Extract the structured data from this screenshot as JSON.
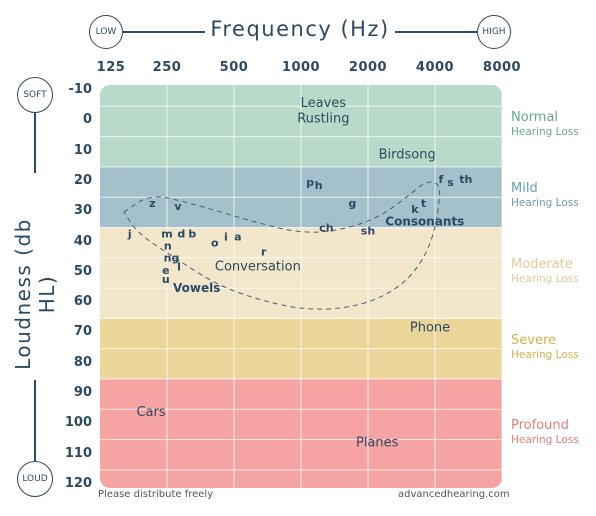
{
  "chart_data": {
    "type": "audiogram",
    "title": "Frequency (Hz)",
    "ylabel": "Loudness (db HL)",
    "x_scale": "log2",
    "x_ticks": [
      125,
      250,
      500,
      1000,
      2000,
      4000,
      8000
    ],
    "x_tick_labels": [
      "125",
      "250",
      "500",
      "1000",
      "2000",
      "4000",
      "8000"
    ],
    "x_range": [
      125,
      8000
    ],
    "y_ticks": [
      -10,
      0,
      10,
      20,
      30,
      40,
      50,
      60,
      70,
      80,
      90,
      100,
      110,
      120
    ],
    "y_range": [
      -10,
      120
    ],
    "y_inverted": true,
    "x_end_labels": {
      "low": "LOW",
      "high": "HIGH"
    },
    "y_end_labels": {
      "top": "SOFT",
      "bottom": "LOUD"
    },
    "bands": [
      {
        "name": "Normal",
        "sub": "Hearing Loss",
        "from": -10,
        "to": 20,
        "color": "#b9dac8",
        "label_color": "#6aa98b"
      },
      {
        "name": "Mild",
        "sub": "Hearing Loss",
        "from": 20,
        "to": 40,
        "color": "#a4c0cb",
        "label_color": "#6a9db0"
      },
      {
        "name": "Moderate",
        "sub": "Hearing Loss",
        "from": 40,
        "to": 70,
        "color": "#f2e6cb",
        "label_color": "#e2c99a"
      },
      {
        "name": "Severe",
        "sub": "Hearing Loss",
        "from": 70,
        "to": 90,
        "color": "#ead699",
        "label_color": "#d6b14f"
      },
      {
        "name": "Profound",
        "sub": "Hearing Loss",
        "from": 90,
        "to": 120,
        "color": "#f5a3a3",
        "label_color": "#e77b7b"
      }
    ],
    "annotations": [
      {
        "text": "Leaves",
        "freq": 1260,
        "db": -6,
        "weight": "normal"
      },
      {
        "text": "Rustling",
        "freq": 1260,
        "db": -1,
        "weight": "normal"
      },
      {
        "text": "Birdsong",
        "freq": 3000,
        "db": 11,
        "weight": "normal"
      },
      {
        "text": "Conversation",
        "freq": 640,
        "db": 48,
        "weight": "normal"
      },
      {
        "text": "Phone",
        "freq": 3800,
        "db": 68,
        "weight": "normal"
      },
      {
        "text": "Cars",
        "freq": 212,
        "db": 96,
        "weight": "normal"
      },
      {
        "text": "Planes",
        "freq": 2200,
        "db": 106,
        "weight": "normal"
      },
      {
        "text": "Consonants",
        "freq": 3600,
        "db": 33,
        "weight": "bold"
      },
      {
        "text": "Vowels",
        "freq": 340,
        "db": 55,
        "weight": "bold"
      }
    ],
    "speech_sounds": [
      {
        "text": "z",
        "freq": 215,
        "db": 27
      },
      {
        "text": "v",
        "freq": 280,
        "db": 28
      },
      {
        "text": "j",
        "freq": 170,
        "db": 37
      },
      {
        "text": "m",
        "freq": 250,
        "db": 37
      },
      {
        "text": "d",
        "freq": 290,
        "db": 37
      },
      {
        "text": "b",
        "freq": 325,
        "db": 37
      },
      {
        "text": "n",
        "freq": 252,
        "db": 41
      },
      {
        "text": "ng",
        "freq": 262,
        "db": 45
      },
      {
        "text": "e",
        "freq": 247,
        "db": 49
      },
      {
        "text": "l",
        "freq": 283,
        "db": 48
      },
      {
        "text": "u",
        "freq": 247,
        "db": 52
      },
      {
        "text": "o",
        "freq": 410,
        "db": 40
      },
      {
        "text": "i",
        "freq": 460,
        "db": 38
      },
      {
        "text": "a",
        "freq": 520,
        "db": 38
      },
      {
        "text": "r",
        "freq": 680,
        "db": 43
      },
      {
        "text": "p",
        "freq": 1100,
        "db": 20
      },
      {
        "text": "h",
        "freq": 1200,
        "db": 21
      },
      {
        "text": "g",
        "freq": 1700,
        "db": 27
      },
      {
        "text": "ch",
        "freq": 1300,
        "db": 35
      },
      {
        "text": "sh",
        "freq": 2000,
        "db": 36
      },
      {
        "text": "k",
        "freq": 3250,
        "db": 29
      },
      {
        "text": "t",
        "freq": 3550,
        "db": 27
      },
      {
        "text": "f",
        "freq": 4250,
        "db": 19
      },
      {
        "text": "s",
        "freq": 4700,
        "db": 20
      },
      {
        "text": "th",
        "freq": 5500,
        "db": 19
      }
    ],
    "speech_banana_curve": [
      [
        160,
        30
      ],
      [
        210,
        24
      ],
      [
        320,
        27
      ],
      [
        600,
        33
      ],
      [
        1000,
        37
      ],
      [
        1500,
        36
      ],
      [
        2200,
        32
      ],
      [
        3000,
        25
      ],
      [
        3600,
        20
      ],
      [
        4100,
        20
      ],
      [
        4250,
        24
      ],
      [
        3900,
        40
      ],
      [
        3100,
        52
      ],
      [
        2200,
        59
      ],
      [
        1500,
        62
      ],
      [
        1000,
        62
      ],
      [
        650,
        59
      ],
      [
        420,
        54
      ],
      [
        270,
        45
      ],
      [
        185,
        37
      ],
      [
        160,
        30
      ]
    ],
    "grid": true
  },
  "footer": {
    "left": "Please distribute freely",
    "right": "advancedhearing.com"
  }
}
